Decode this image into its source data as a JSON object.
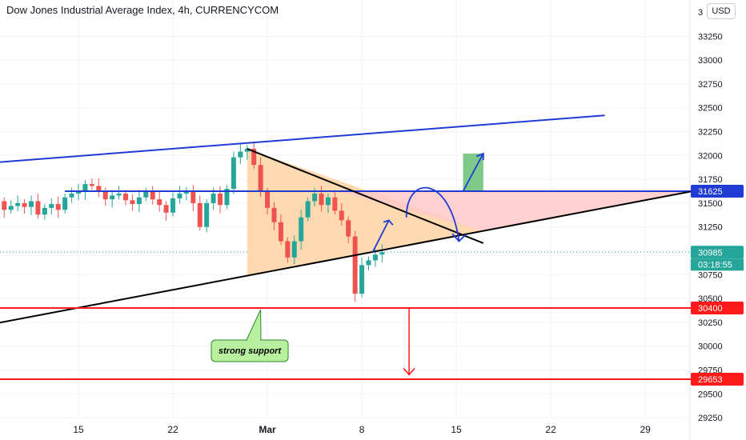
{
  "header": {
    "title": "Dow Jones Industrial Average Index, 4h, CURRENCYCOM",
    "currency_button": "USD"
  },
  "colors": {
    "up": "#26a69a",
    "down": "#ef5350",
    "resistance": "#1f3bd4",
    "trendline": "#000000",
    "support_lines": "#ff1a1a",
    "triangle_fill": "#ffd3a3",
    "target_zone": "#ffc9c9",
    "green_box": "#7ec98a",
    "callout_fill": "#b8f0a0",
    "callout_border": "#2c8a2c"
  },
  "chart_data": {
    "type": "candlestick",
    "title": "Dow Jones Industrial Average Index, 4h, CURRENCYCOM",
    "y_axis": {
      "range": [
        29200,
        33480
      ],
      "ticks": [
        29250,
        29500,
        29750,
        30000,
        30250,
        30500,
        30750,
        31000,
        31250,
        31500,
        31750,
        32000,
        32250,
        32500,
        32750,
        33000,
        33250
      ],
      "tick_labels": [
        "29250",
        "29500",
        "29750",
        "30000",
        "30250",
        "30500",
        "30750",
        "31000",
        "31250",
        "31500",
        "31750",
        "32000",
        "32250",
        "32500",
        "32750",
        "33000",
        "33250"
      ],
      "top_partial_label": "3"
    },
    "x_axis": {
      "labels": [
        {
          "label": "15",
          "day": 15
        },
        {
          "label": "22",
          "day": 22
        },
        {
          "label": "Mar",
          "day": 29
        },
        {
          "label": "8",
          "day": 36
        },
        {
          "label": "15",
          "day": 43
        },
        {
          "label": "22",
          "day": 50
        },
        {
          "label": "29",
          "day": 57
        }
      ]
    },
    "ohlc_close_path": [
      [
        8.0,
        31400
      ],
      [
        8.5,
        31480
      ],
      [
        9.0,
        31520
      ],
      [
        9.5,
        31430
      ],
      [
        10.0,
        31470
      ],
      [
        10.5,
        31500
      ],
      [
        11.0,
        31460
      ],
      [
        11.5,
        31520
      ],
      [
        12.0,
        31380
      ],
      [
        12.5,
        31450
      ],
      [
        13.0,
        31490
      ],
      [
        13.5,
        31430
      ],
      [
        14.0,
        31560
      ],
      [
        14.5,
        31600
      ],
      [
        15.0,
        31620
      ],
      [
        15.5,
        31700
      ],
      [
        16.0,
        31680
      ],
      [
        16.5,
        31620
      ],
      [
        17.0,
        31540
      ],
      [
        17.5,
        31580
      ],
      [
        18.0,
        31600
      ],
      [
        18.5,
        31530
      ],
      [
        19.0,
        31490
      ],
      [
        19.5,
        31560
      ],
      [
        20.0,
        31620
      ],
      [
        20.5,
        31540
      ],
      [
        21.0,
        31480
      ],
      [
        21.5,
        31400
      ],
      [
        22.0,
        31550
      ],
      [
        22.5,
        31600
      ],
      [
        23.0,
        31630
      ],
      [
        23.5,
        31500
      ],
      [
        24.0,
        31250
      ],
      [
        24.5,
        31500
      ],
      [
        25.0,
        31600
      ],
      [
        25.5,
        31480
      ],
      [
        26.0,
        31650
      ],
      [
        26.5,
        31980
      ],
      [
        27.0,
        32040
      ],
      [
        27.5,
        32070
      ],
      [
        28.0,
        31900
      ],
      [
        28.5,
        31620
      ],
      [
        29.0,
        31450
      ],
      [
        29.5,
        31300
      ],
      [
        30.0,
        31100
      ],
      [
        30.5,
        30930
      ],
      [
        31.0,
        31100
      ],
      [
        31.5,
        31350
      ],
      [
        32.0,
        31520
      ],
      [
        32.5,
        31600
      ],
      [
        33.0,
        31480
      ],
      [
        33.5,
        31560
      ],
      [
        34.0,
        31420
      ],
      [
        34.5,
        31320
      ],
      [
        35.0,
        31150
      ],
      [
        35.5,
        30550
      ],
      [
        36.0,
        30850
      ],
      [
        36.5,
        30900
      ],
      [
        37.0,
        30960
      ],
      [
        37.5,
        30985
      ]
    ],
    "last_price": 30985,
    "countdown": "03:18:55",
    "price_labels": [
      {
        "value": 31625,
        "label": "31625",
        "color": "#1f3bd4"
      },
      {
        "value": 30985,
        "label": "30985",
        "color": "#26a69a"
      },
      {
        "value": 30400,
        "label": "30400",
        "color": "#ff1a1a"
      },
      {
        "value": 29653,
        "label": "29653",
        "color": "#ff1a1a"
      }
    ],
    "drawings": {
      "rising_channel_top": {
        "from": [
          0.0,
          31830
        ],
        "to": [
          54.0,
          32420
        ]
      },
      "resistance_horizontal": {
        "from": [
          14.0,
          31625
        ],
        "to": [
          62.0,
          31625
        ]
      },
      "rising_support": {
        "from": [
          0.0,
          30000
        ],
        "to": [
          60.5,
          31625
        ]
      },
      "falling_trendline": {
        "from": [
          27.5,
          32070
        ],
        "to": [
          45.0,
          31080
        ]
      },
      "support_30400": {
        "from": [
          0.0,
          30400
        ],
        "to": [
          62.0,
          30400
        ]
      },
      "support_29653": {
        "from": [
          0.0,
          29653
        ],
        "to": [
          62.0,
          29653
        ]
      },
      "down_arrow": {
        "from": [
          39.5,
          30400
        ],
        "to": [
          39.5,
          29700
        ]
      },
      "green_box": {
        "x": [
          43.5,
          45.0
        ],
        "y": [
          31625,
          32020
        ]
      },
      "triangle_apex_day": 45.0
    },
    "annotations": [
      {
        "text": "strong support",
        "anchor": [
          28.5,
          30400
        ]
      }
    ],
    "grid": true
  }
}
